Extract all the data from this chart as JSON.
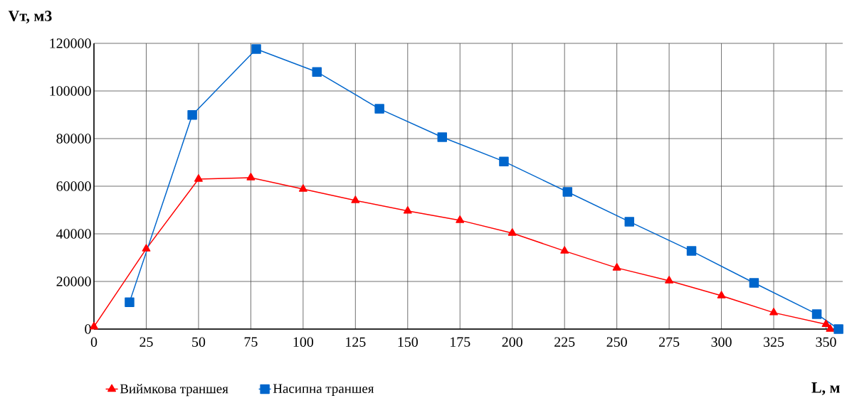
{
  "chart_data": {
    "type": "line",
    "xlabel": "L, м",
    "ylabel": "Vт, м3",
    "xlim": [
      0,
      358
    ],
    "ylim": [
      0,
      120000
    ],
    "xticks": [
      0,
      25,
      50,
      75,
      100,
      125,
      150,
      175,
      200,
      225,
      250,
      275,
      300,
      325,
      350
    ],
    "yticks": [
      0,
      20000,
      40000,
      60000,
      80000,
      100000,
      120000
    ],
    "grid": true,
    "legend": "bottom left",
    "series": [
      {
        "name": "Виймкова траншея",
        "color": "#ff0000",
        "marker": "triangle",
        "x": [
          0,
          25,
          50,
          75,
          100,
          125,
          150,
          175,
          200,
          225,
          250,
          275,
          300,
          325,
          350,
          352
        ],
        "values": [
          1000,
          33700,
          63000,
          63600,
          58800,
          54000,
          49600,
          45700,
          40300,
          32800,
          25700,
          20300,
          14000,
          6900,
          2000,
          0
        ]
      },
      {
        "name": "Насипна траншея",
        "color": "#0066cc",
        "marker": "square",
        "x": [
          17,
          47,
          77.6,
          106.6,
          136.5,
          166.5,
          196,
          226.4,
          256,
          285.7,
          315.6,
          345.6,
          356
        ],
        "values": [
          11300,
          89900,
          117600,
          108000,
          92500,
          80600,
          70400,
          57600,
          45100,
          32800,
          19400,
          6300,
          0
        ]
      }
    ]
  }
}
